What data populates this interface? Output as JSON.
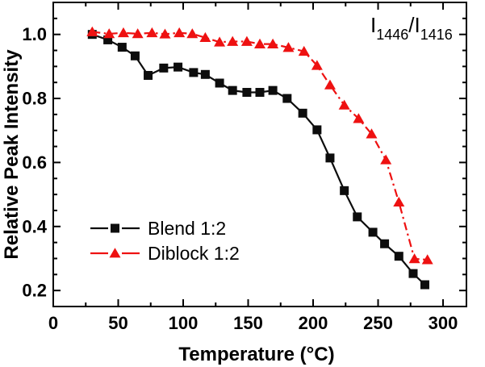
{
  "chart_data": {
    "type": "line",
    "title": "",
    "annotation": {
      "text": "I1446/I1416",
      "parts": [
        {
          "t": "I",
          "sub": false
        },
        {
          "t": "1446",
          "sub": true
        },
        {
          "t": "/I",
          "sub": false
        },
        {
          "t": "1416",
          "sub": true
        }
      ]
    },
    "xlabel": "Temperature (°C)",
    "ylabel": "Relative Peak Intensity",
    "xlim": [
      0,
      318
    ],
    "ylim": [
      0.15,
      1.1
    ],
    "xticks": [
      0,
      50,
      100,
      150,
      200,
      250,
      300
    ],
    "xtick_labels": [
      "0",
      "50",
      "100",
      "150",
      "200",
      "250",
      "300"
    ],
    "x_minor_step": 25,
    "yticks": [
      0.2,
      0.4,
      0.6,
      0.8,
      1.0
    ],
    "ytick_labels": [
      "0.2",
      "0.4",
      "0.6",
      "0.8",
      "1.0"
    ],
    "y_minor_step": 0.05,
    "grid": false,
    "legend_position": "inside-lower-left",
    "colors": {
      "blend": "#0d0d0d",
      "diblock": "#ee1111",
      "background": "#ffffff"
    },
    "series": [
      {
        "name": "Blend 1:2",
        "slug": "blend-1-2",
        "color": "#0d0d0d",
        "marker": "square",
        "line_style": "solid",
        "x": [
          30,
          42,
          53,
          63,
          73,
          85,
          96,
          108,
          117,
          128,
          138,
          149,
          159,
          169,
          180,
          192,
          203,
          213,
          224,
          234,
          246,
          255,
          266,
          277,
          286
        ],
        "y": [
          1.0,
          0.983,
          0.96,
          0.933,
          0.872,
          0.895,
          0.898,
          0.881,
          0.875,
          0.848,
          0.825,
          0.819,
          0.819,
          0.825,
          0.8,
          0.754,
          0.702,
          0.614,
          0.512,
          0.43,
          0.382,
          0.346,
          0.307,
          0.253,
          0.218
        ]
      },
      {
        "name": "Diblock 1:2",
        "slug": "diblock-1-2",
        "color": "#ee1111",
        "marker": "triangle",
        "line_style": "dash-dot",
        "x": [
          30,
          43,
          54,
          65,
          76,
          86,
          97,
          107,
          117,
          128,
          138,
          149,
          159,
          169,
          181,
          193,
          203,
          213,
          224,
          235,
          245,
          256,
          266,
          278,
          288
        ],
        "y": [
          1.008,
          1.002,
          1.005,
          1.002,
          1.005,
          1.001,
          1.005,
          1.002,
          0.99,
          0.976,
          0.978,
          0.978,
          0.97,
          0.97,
          0.959,
          0.947,
          0.903,
          0.842,
          0.779,
          0.737,
          0.689,
          0.608,
          0.476,
          0.299,
          0.296
        ]
      }
    ]
  }
}
